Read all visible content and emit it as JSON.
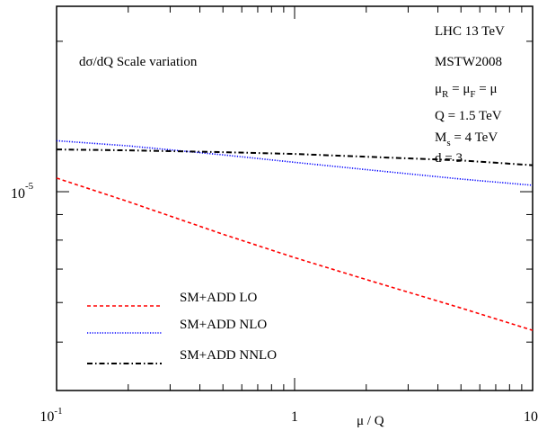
{
  "chart_data": {
    "type": "line",
    "title": "dσ/dQ Scale variation",
    "xlabel": "μ / Q",
    "ylabel": "",
    "x_scale": "log",
    "y_scale": "log",
    "xlim": [
      0.1,
      10
    ],
    "x_ticks": [
      {
        "value": 0.1,
        "base": "10",
        "exp": "-1"
      },
      {
        "value": 1,
        "base": "1",
        "exp": ""
      },
      {
        "value": 10,
        "base": "10",
        "exp": ""
      }
    ],
    "y_ticks": [
      {
        "value": 1e-05,
        "base": "10",
        "exp": "-5"
      }
    ],
    "annotations": [
      {
        "key": "lhc",
        "parts": [
          {
            "t": "LHC 13 TeV"
          }
        ]
      },
      {
        "key": "pdf",
        "parts": [
          {
            "t": "MSTW2008"
          }
        ]
      },
      {
        "key": "scales",
        "parts": [
          {
            "t": "μ"
          },
          {
            "t": "R",
            "sub": true
          },
          {
            "t": " = μ"
          },
          {
            "t": "F",
            "sub": true
          },
          {
            "t": " = μ"
          }
        ]
      },
      {
        "key": "q",
        "parts": [
          {
            "t": "Q = 1.5 TeV"
          }
        ]
      },
      {
        "key": "ms",
        "parts": [
          {
            "t": "M"
          },
          {
            "t": "s",
            "sub": true
          },
          {
            "t": " = 4 TeV"
          }
        ]
      },
      {
        "key": "d",
        "parts": [
          {
            "t": "d = 3"
          }
        ]
      }
    ],
    "legend_position": "bottom-left",
    "series": [
      {
        "name": "SM+ADD LO",
        "color": "#ff0000",
        "style": "dashed",
        "x": [
          0.1,
          0.2,
          0.5,
          1,
          2,
          5,
          10
        ],
        "y": [
          1.065e-05,
          9.55e-06,
          8.22e-06,
          7.38e-06,
          6.67e-06,
          5.85e-06,
          5.28e-06
        ]
      },
      {
        "name": "SM+ADD NLO",
        "color": "#0000ff",
        "style": "dotted",
        "x": [
          0.1,
          0.2,
          0.5,
          1,
          2,
          5,
          10
        ],
        "y": [
          1.265e-05,
          1.235e-05,
          1.185e-05,
          1.145e-05,
          1.107e-05,
          1.06e-05,
          1.03e-05
        ]
      },
      {
        "name": "SM+ADD NNLO",
        "color": "#000000",
        "style": "dashdot",
        "x": [
          0.1,
          0.2,
          0.5,
          1,
          2,
          5,
          10
        ],
        "y": [
          1.215e-05,
          1.21e-05,
          1.2e-05,
          1.19e-05,
          1.175e-05,
          1.155e-05,
          1.13e-05
        ]
      }
    ]
  }
}
